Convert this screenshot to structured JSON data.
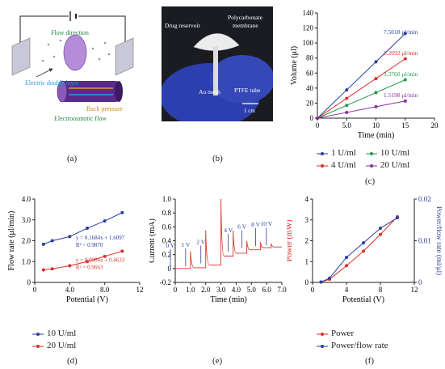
{
  "panels": {
    "a": {
      "label": "(a)",
      "annotations": {
        "flow_direction": "Flow direction",
        "electric_double_layer": "Electric double layer",
        "back_pressure": "Back pressure",
        "electroosmotic_flow": "Electroosmotic flow"
      }
    },
    "b": {
      "label": "(b)",
      "annotations": {
        "drug_reservoir": "Drug reservoir",
        "polycarbonate": "Polycarbonate",
        "membrane": "membrane",
        "au_mesh": "Au mesh",
        "ptfe_tube": "PTFE tube",
        "scale": "1 cm"
      }
    },
    "c": {
      "label": "(c)"
    },
    "d": {
      "label": "(d)"
    },
    "e": {
      "label": "(e)"
    },
    "f": {
      "label": "(f)"
    }
  },
  "chart_data": [
    {
      "id": "c",
      "type": "line",
      "xlabel": "Time (min)",
      "ylabel": "Volume (μl)",
      "xlim": [
        0,
        20
      ],
      "ylim": [
        0,
        140
      ],
      "xticks": [
        "0",
        "5.0",
        "10",
        "15",
        "20"
      ],
      "yticks": [
        "0",
        "20",
        "40",
        "60",
        "80",
        "100",
        "120",
        "140"
      ],
      "x": [
        0,
        5,
        10,
        15
      ],
      "series": [
        {
          "name": "1 U/ml",
          "color": "#2b3f9e",
          "values": [
            0,
            37.5,
            75,
            112.5
          ],
          "annotation": "7.5018 μl/min"
        },
        {
          "name": "4 U/ml",
          "color": "#d7322c",
          "values": [
            0,
            26.3,
            52.7,
            79
          ],
          "annotation": "5.2692 μl/min"
        },
        {
          "name": "10 U/ml",
          "color": "#1f9a4c",
          "values": [
            0,
            17,
            34,
            51
          ],
          "annotation": "3.3760 μl/min"
        },
        {
          "name": "20 U/ml",
          "color": "#8a2f9e",
          "values": [
            0,
            7.6,
            15.2,
            22.8
          ],
          "annotation": "1.5198 μl/min"
        }
      ]
    },
    {
      "id": "d",
      "type": "scatter",
      "xlabel": "Potential (V)",
      "ylabel": "Flow rate (μl/min)",
      "xlim": [
        0,
        12
      ],
      "ylim": [
        0,
        4.0
      ],
      "xticks": [
        "0",
        "4.0",
        "8.0",
        "12"
      ],
      "yticks": [
        "0",
        "1.0",
        "2.0",
        "3.0",
        "4.0"
      ],
      "series": [
        {
          "name": "10 U/ml",
          "color": "#2b3f9e",
          "x": [
            1,
            2,
            4,
            6,
            8,
            10
          ],
          "values": [
            1.83,
            2.0,
            2.2,
            2.6,
            2.95,
            3.35
          ],
          "equation": "y = 0.1684x + 1.6097",
          "r2": "R² = 0.9870"
        },
        {
          "name": "20 U/ml",
          "color": "#d7322c",
          "x": [
            1,
            2,
            4,
            6,
            8,
            10
          ],
          "values": [
            0.6,
            0.65,
            0.8,
            1.0,
            1.25,
            1.5
          ],
          "equation": "y = 0.0986x + 0.4633",
          "r2": "R² = 0.9663"
        }
      ]
    },
    {
      "id": "e",
      "type": "line",
      "xlabel": "Time (min)",
      "ylabel": "Current (mA)",
      "xlim": [
        0,
        7.0
      ],
      "ylim": [
        -0.2,
        1.0
      ],
      "xticks": [
        "0",
        "1.0",
        "2.0",
        "3.0",
        "4.0",
        "5.0",
        "6.0",
        "7.0"
      ],
      "yticks": [
        "-0.2",
        "0",
        "0.2",
        "0.4",
        "0.6",
        "0.8",
        "1.0"
      ],
      "steps": [
        {
          "label": "0 V",
          "t": 0.0,
          "peak": 0.0,
          "base": 0.0
        },
        {
          "label": "1 V",
          "t": 1.0,
          "peak": 0.25,
          "base": 0.01
        },
        {
          "label": "2 V",
          "t": 2.0,
          "peak": 0.55,
          "base": 0.05
        },
        {
          "label": "",
          "t": 3.0,
          "peak": 1.0,
          "base": 0.18
        },
        {
          "label": "4 V",
          "t": 3.8,
          "peak": 0.55,
          "base": 0.22
        },
        {
          "label": "6 V",
          "t": 4.7,
          "peak": 0.4,
          "base": 0.27
        },
        {
          "label": "8 V",
          "t": 5.6,
          "peak": 0.38,
          "base": 0.3
        },
        {
          "label": "10 V",
          "t": 6.3,
          "peak": 0.36,
          "base": 0.31
        }
      ],
      "color": "#d7322c"
    },
    {
      "id": "f",
      "type": "line",
      "xlabel": "Potential (V)",
      "ylabel": "Power (mW)",
      "ylabel_right": "Power/flow rate (ml/μl)",
      "xlim": [
        0,
        12
      ],
      "ylim": [
        0,
        4
      ],
      "ylim_right": [
        0,
        0.02
      ],
      "xticks": [
        "0",
        "4",
        "8",
        "12"
      ],
      "yticks": [
        "0",
        "1",
        "2",
        "3",
        "4"
      ],
      "yticks_right": [
        "0",
        "0.01",
        "0.02"
      ],
      "x": [
        1,
        2,
        4,
        6,
        8,
        10
      ],
      "series": [
        {
          "name": "Power",
          "color": "#d7322c",
          "axis": "left",
          "values": [
            0.02,
            0.15,
            0.8,
            1.5,
            2.3,
            3.15
          ]
        },
        {
          "name": "Power/flow rate",
          "color": "#2b3f9e",
          "axis": "right",
          "values": [
            0.0001,
            0.001,
            0.006,
            0.0095,
            0.013,
            0.0155
          ]
        }
      ]
    }
  ]
}
